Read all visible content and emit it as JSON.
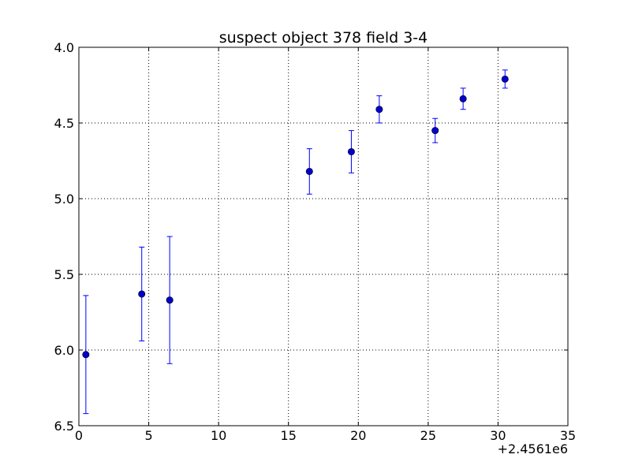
{
  "chart_data": {
    "type": "scatter",
    "title": "suspect object 378 field 3-4",
    "xlabel": "",
    "ylabel": "",
    "x_offset_label": "+2.4561e6",
    "xlim": [
      0,
      35
    ],
    "ylim": [
      6.5,
      4.0
    ],
    "y_inverted": true,
    "grid": true,
    "x_ticks": [
      0,
      5,
      10,
      15,
      20,
      25,
      30,
      35
    ],
    "x_tick_labels": [
      "0",
      "5",
      "10",
      "15",
      "20",
      "25",
      "30",
      "35"
    ],
    "y_ticks": [
      4.0,
      4.5,
      5.0,
      5.5,
      6.0,
      6.5
    ],
    "y_tick_labels": [
      "4.0",
      "4.5",
      "5.0",
      "5.5",
      "6.0",
      "6.5"
    ],
    "marker_color": "#0000cc",
    "errorbar_color": "#0000ff",
    "series": [
      {
        "points": [
          {
            "x": 0.5,
            "y": 6.03,
            "err": 0.39
          },
          {
            "x": 4.5,
            "y": 5.63,
            "err": 0.31
          },
          {
            "x": 6.5,
            "y": 5.67,
            "err": 0.42
          },
          {
            "x": 16.5,
            "y": 4.82,
            "err": 0.15
          },
          {
            "x": 19.5,
            "y": 4.69,
            "err": 0.14
          },
          {
            "x": 21.5,
            "y": 4.41,
            "err": 0.09
          },
          {
            "x": 25.5,
            "y": 4.55,
            "err": 0.08
          },
          {
            "x": 27.5,
            "y": 4.34,
            "err": 0.07
          },
          {
            "x": 30.5,
            "y": 4.21,
            "err": 0.06
          }
        ]
      }
    ]
  }
}
